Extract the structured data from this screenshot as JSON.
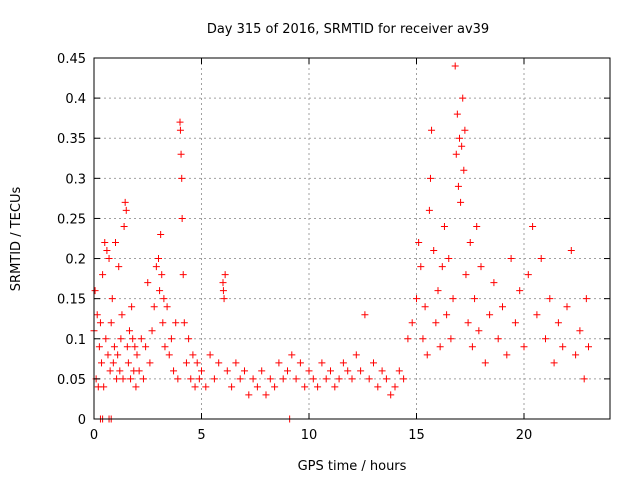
{
  "chart_data": {
    "type": "scatter",
    "title": "Day 315 of 2016, SRMTID for receiver av39",
    "xlabel": "GPS time / hours",
    "ylabel": "SRMTID / TECUs",
    "xlim": [
      0,
      24
    ],
    "ylim": [
      0,
      0.45
    ],
    "x_ticks": [
      0,
      5,
      10,
      15,
      20
    ],
    "x_tick_labels": [
      "0",
      "5",
      "10",
      "15",
      "20"
    ],
    "y_ticks": [
      0,
      0.05,
      0.1,
      0.15,
      0.2,
      0.25,
      0.3,
      0.35,
      0.4,
      0.45
    ],
    "y_tick_labels": [
      "0",
      "0.05",
      "0.1",
      "0.15",
      "0.2",
      "0.25",
      "0.3",
      "0.35",
      "0.4",
      "0.45"
    ],
    "grid": true,
    "marker": "plus",
    "color": "#ff0000",
    "series": [
      {
        "name": "SRMTID",
        "points": [
          [
            0.0,
            0.11
          ],
          [
            0.05,
            0.16
          ],
          [
            0.1,
            0.05
          ],
          [
            0.15,
            0.13
          ],
          [
            0.2,
            0.04
          ],
          [
            0.25,
            0.09
          ],
          [
            0.3,
            0.12
          ],
          [
            0.35,
            0.07
          ],
          [
            0.4,
            0.18
          ],
          [
            0.45,
            0.04
          ],
          [
            0.5,
            0.22
          ],
          [
            0.55,
            0.1
          ],
          [
            0.6,
            0.21
          ],
          [
            0.65,
            0.08
          ],
          [
            0.7,
            0.2
          ],
          [
            0.75,
            0.06
          ],
          [
            0.8,
            0.12
          ],
          [
            0.85,
            0.15
          ],
          [
            0.9,
            0.07
          ],
          [
            0.95,
            0.09
          ],
          [
            0.3,
            0.0
          ],
          [
            0.4,
            0.0
          ],
          [
            0.7,
            0.0
          ],
          [
            0.8,
            0.0
          ],
          [
            1.0,
            0.22
          ],
          [
            1.05,
            0.05
          ],
          [
            1.1,
            0.08
          ],
          [
            1.15,
            0.19
          ],
          [
            1.2,
            0.06
          ],
          [
            1.25,
            0.1
          ],
          [
            1.3,
            0.13
          ],
          [
            1.35,
            0.05
          ],
          [
            1.4,
            0.24
          ],
          [
            1.45,
            0.27
          ],
          [
            1.5,
            0.26
          ],
          [
            1.55,
            0.09
          ],
          [
            1.6,
            0.07
          ],
          [
            1.65,
            0.11
          ],
          [
            1.7,
            0.05
          ],
          [
            1.75,
            0.14
          ],
          [
            1.8,
            0.1
          ],
          [
            1.85,
            0.06
          ],
          [
            1.9,
            0.09
          ],
          [
            1.95,
            0.04
          ],
          [
            2.0,
            0.08
          ],
          [
            2.1,
            0.06
          ],
          [
            2.2,
            0.1
          ],
          [
            2.3,
            0.05
          ],
          [
            2.4,
            0.09
          ],
          [
            2.5,
            0.17
          ],
          [
            2.6,
            0.07
          ],
          [
            2.7,
            0.11
          ],
          [
            2.8,
            0.14
          ],
          [
            2.9,
            0.19
          ],
          [
            3.0,
            0.2
          ],
          [
            3.05,
            0.16
          ],
          [
            3.1,
            0.23
          ],
          [
            3.15,
            0.18
          ],
          [
            3.2,
            0.12
          ],
          [
            3.25,
            0.15
          ],
          [
            3.3,
            0.09
          ],
          [
            3.4,
            0.14
          ],
          [
            3.5,
            0.08
          ],
          [
            3.6,
            0.1
          ],
          [
            3.7,
            0.06
          ],
          [
            3.8,
            0.12
          ],
          [
            3.9,
            0.05
          ],
          [
            4.0,
            0.37
          ],
          [
            4.02,
            0.36
          ],
          [
            4.05,
            0.33
          ],
          [
            4.08,
            0.3
          ],
          [
            4.1,
            0.25
          ],
          [
            4.15,
            0.18
          ],
          [
            4.2,
            0.12
          ],
          [
            4.3,
            0.07
          ],
          [
            4.4,
            0.1
          ],
          [
            4.5,
            0.05
          ],
          [
            4.6,
            0.08
          ],
          [
            4.7,
            0.04
          ],
          [
            4.8,
            0.07
          ],
          [
            4.9,
            0.05
          ],
          [
            5.0,
            0.06
          ],
          [
            5.2,
            0.04
          ],
          [
            5.4,
            0.08
          ],
          [
            5.6,
            0.05
          ],
          [
            5.8,
            0.07
          ],
          [
            6.0,
            0.17
          ],
          [
            6.02,
            0.16
          ],
          [
            6.05,
            0.15
          ],
          [
            6.1,
            0.18
          ],
          [
            6.2,
            0.06
          ],
          [
            6.4,
            0.04
          ],
          [
            6.6,
            0.07
          ],
          [
            6.8,
            0.05
          ],
          [
            7.0,
            0.06
          ],
          [
            7.2,
            0.03
          ],
          [
            7.4,
            0.05
          ],
          [
            7.6,
            0.04
          ],
          [
            7.8,
            0.06
          ],
          [
            8.0,
            0.03
          ],
          [
            8.2,
            0.05
          ],
          [
            8.4,
            0.04
          ],
          [
            8.6,
            0.07
          ],
          [
            8.8,
            0.05
          ],
          [
            9.0,
            0.06
          ],
          [
            9.1,
            0.0
          ],
          [
            9.2,
            0.08
          ],
          [
            9.4,
            0.05
          ],
          [
            9.6,
            0.07
          ],
          [
            9.8,
            0.04
          ],
          [
            10.0,
            0.06
          ],
          [
            10.2,
            0.05
          ],
          [
            10.4,
            0.04
          ],
          [
            10.6,
            0.07
          ],
          [
            10.8,
            0.05
          ],
          [
            11.0,
            0.06
          ],
          [
            11.2,
            0.04
          ],
          [
            11.4,
            0.05
          ],
          [
            11.6,
            0.07
          ],
          [
            11.8,
            0.06
          ],
          [
            12.0,
            0.05
          ],
          [
            12.2,
            0.08
          ],
          [
            12.4,
            0.06
          ],
          [
            12.6,
            0.13
          ],
          [
            12.8,
            0.05
          ],
          [
            13.0,
            0.07
          ],
          [
            13.2,
            0.04
          ],
          [
            13.4,
            0.06
          ],
          [
            13.6,
            0.05
          ],
          [
            13.8,
            0.03
          ],
          [
            14.0,
            0.04
          ],
          [
            14.2,
            0.06
          ],
          [
            14.4,
            0.05
          ],
          [
            14.6,
            0.1
          ],
          [
            14.8,
            0.12
          ],
          [
            15.0,
            0.15
          ],
          [
            15.1,
            0.22
          ],
          [
            15.2,
            0.19
          ],
          [
            15.3,
            0.1
          ],
          [
            15.4,
            0.14
          ],
          [
            15.5,
            0.08
          ],
          [
            15.6,
            0.26
          ],
          [
            15.65,
            0.3
          ],
          [
            15.7,
            0.36
          ],
          [
            15.8,
            0.21
          ],
          [
            15.9,
            0.12
          ],
          [
            16.0,
            0.16
          ],
          [
            16.1,
            0.09
          ],
          [
            16.2,
            0.19
          ],
          [
            16.3,
            0.24
          ],
          [
            16.4,
            0.13
          ],
          [
            16.5,
            0.2
          ],
          [
            16.6,
            0.1
          ],
          [
            16.7,
            0.15
          ],
          [
            16.8,
            0.44
          ],
          [
            16.85,
            0.33
          ],
          [
            16.9,
            0.38
          ],
          [
            16.95,
            0.29
          ],
          [
            17.0,
            0.35
          ],
          [
            17.05,
            0.27
          ],
          [
            17.1,
            0.34
          ],
          [
            17.15,
            0.4
          ],
          [
            17.2,
            0.31
          ],
          [
            17.25,
            0.36
          ],
          [
            17.3,
            0.18
          ],
          [
            17.4,
            0.12
          ],
          [
            17.5,
            0.22
          ],
          [
            17.6,
            0.09
          ],
          [
            17.7,
            0.15
          ],
          [
            17.8,
            0.24
          ],
          [
            17.9,
            0.11
          ],
          [
            18.0,
            0.19
          ],
          [
            18.2,
            0.07
          ],
          [
            18.4,
            0.13
          ],
          [
            18.6,
            0.17
          ],
          [
            18.8,
            0.1
          ],
          [
            19.0,
            0.14
          ],
          [
            19.2,
            0.08
          ],
          [
            19.4,
            0.2
          ],
          [
            19.6,
            0.12
          ],
          [
            19.8,
            0.16
          ],
          [
            20.0,
            0.09
          ],
          [
            20.2,
            0.18
          ],
          [
            20.4,
            0.24
          ],
          [
            20.6,
            0.13
          ],
          [
            20.8,
            0.2
          ],
          [
            21.0,
            0.1
          ],
          [
            21.2,
            0.15
          ],
          [
            21.4,
            0.07
          ],
          [
            21.6,
            0.12
          ],
          [
            21.8,
            0.09
          ],
          [
            22.0,
            0.14
          ],
          [
            22.2,
            0.21
          ],
          [
            22.4,
            0.08
          ],
          [
            22.6,
            0.11
          ],
          [
            22.8,
            0.05
          ],
          [
            22.9,
            0.15
          ],
          [
            23.0,
            0.09
          ]
        ]
      }
    ]
  }
}
